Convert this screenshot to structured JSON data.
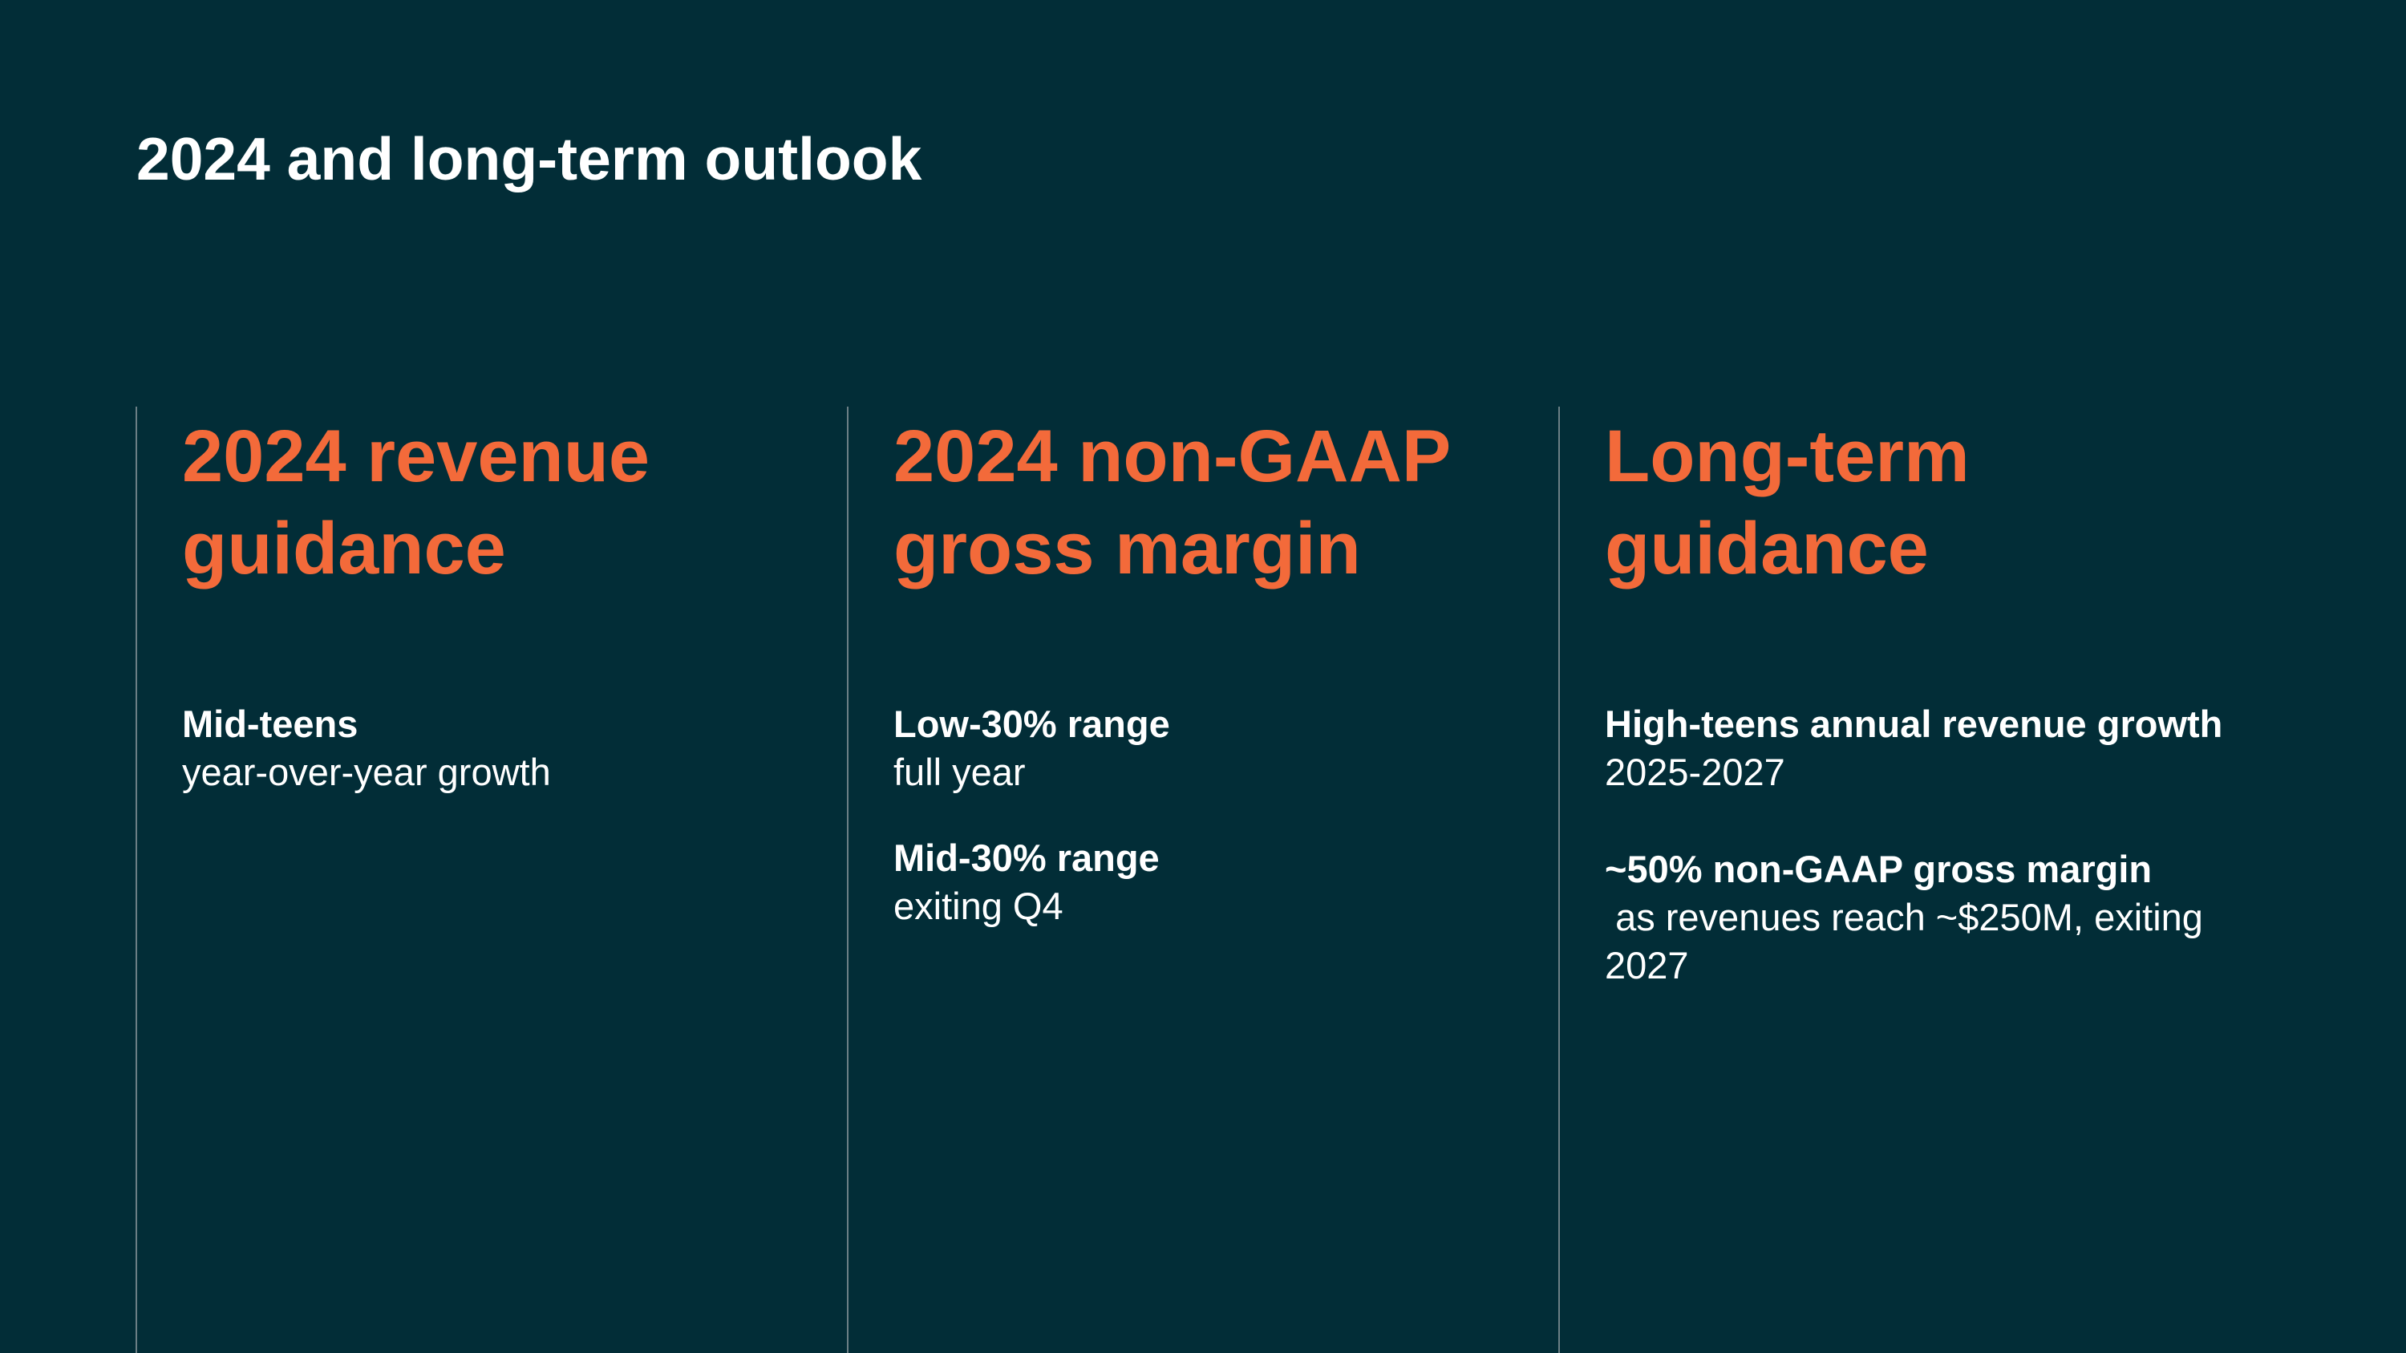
{
  "page_title": "2024 and long-term outlook",
  "colors": {
    "background": "#022d37",
    "accent": "#f36a3a",
    "text": "#ffffff",
    "divider": "#6b7f85"
  },
  "columns": [
    {
      "heading_line1": "2024 revenue",
      "heading_line2": "guidance",
      "items": [
        {
          "title": "Mid-teens",
          "subtitle": "year-over-year growth"
        }
      ]
    },
    {
      "heading_line1": "2024 non-GAAP",
      "heading_line2": "gross margin",
      "items": [
        {
          "title": "Low-30% range",
          "subtitle": "full year"
        },
        {
          "title": "Mid-30% range",
          "subtitle": "exiting Q4"
        }
      ]
    },
    {
      "heading_line1": "Long-term",
      "heading_line2": "guidance",
      "items": [
        {
          "title": "High-teens annual revenue growth",
          "subtitle": "2025-2027"
        },
        {
          "title": "~50% non-GAAP gross margin",
          "subtitle": " as revenues reach ~$250M, exiting 2027"
        }
      ]
    }
  ]
}
